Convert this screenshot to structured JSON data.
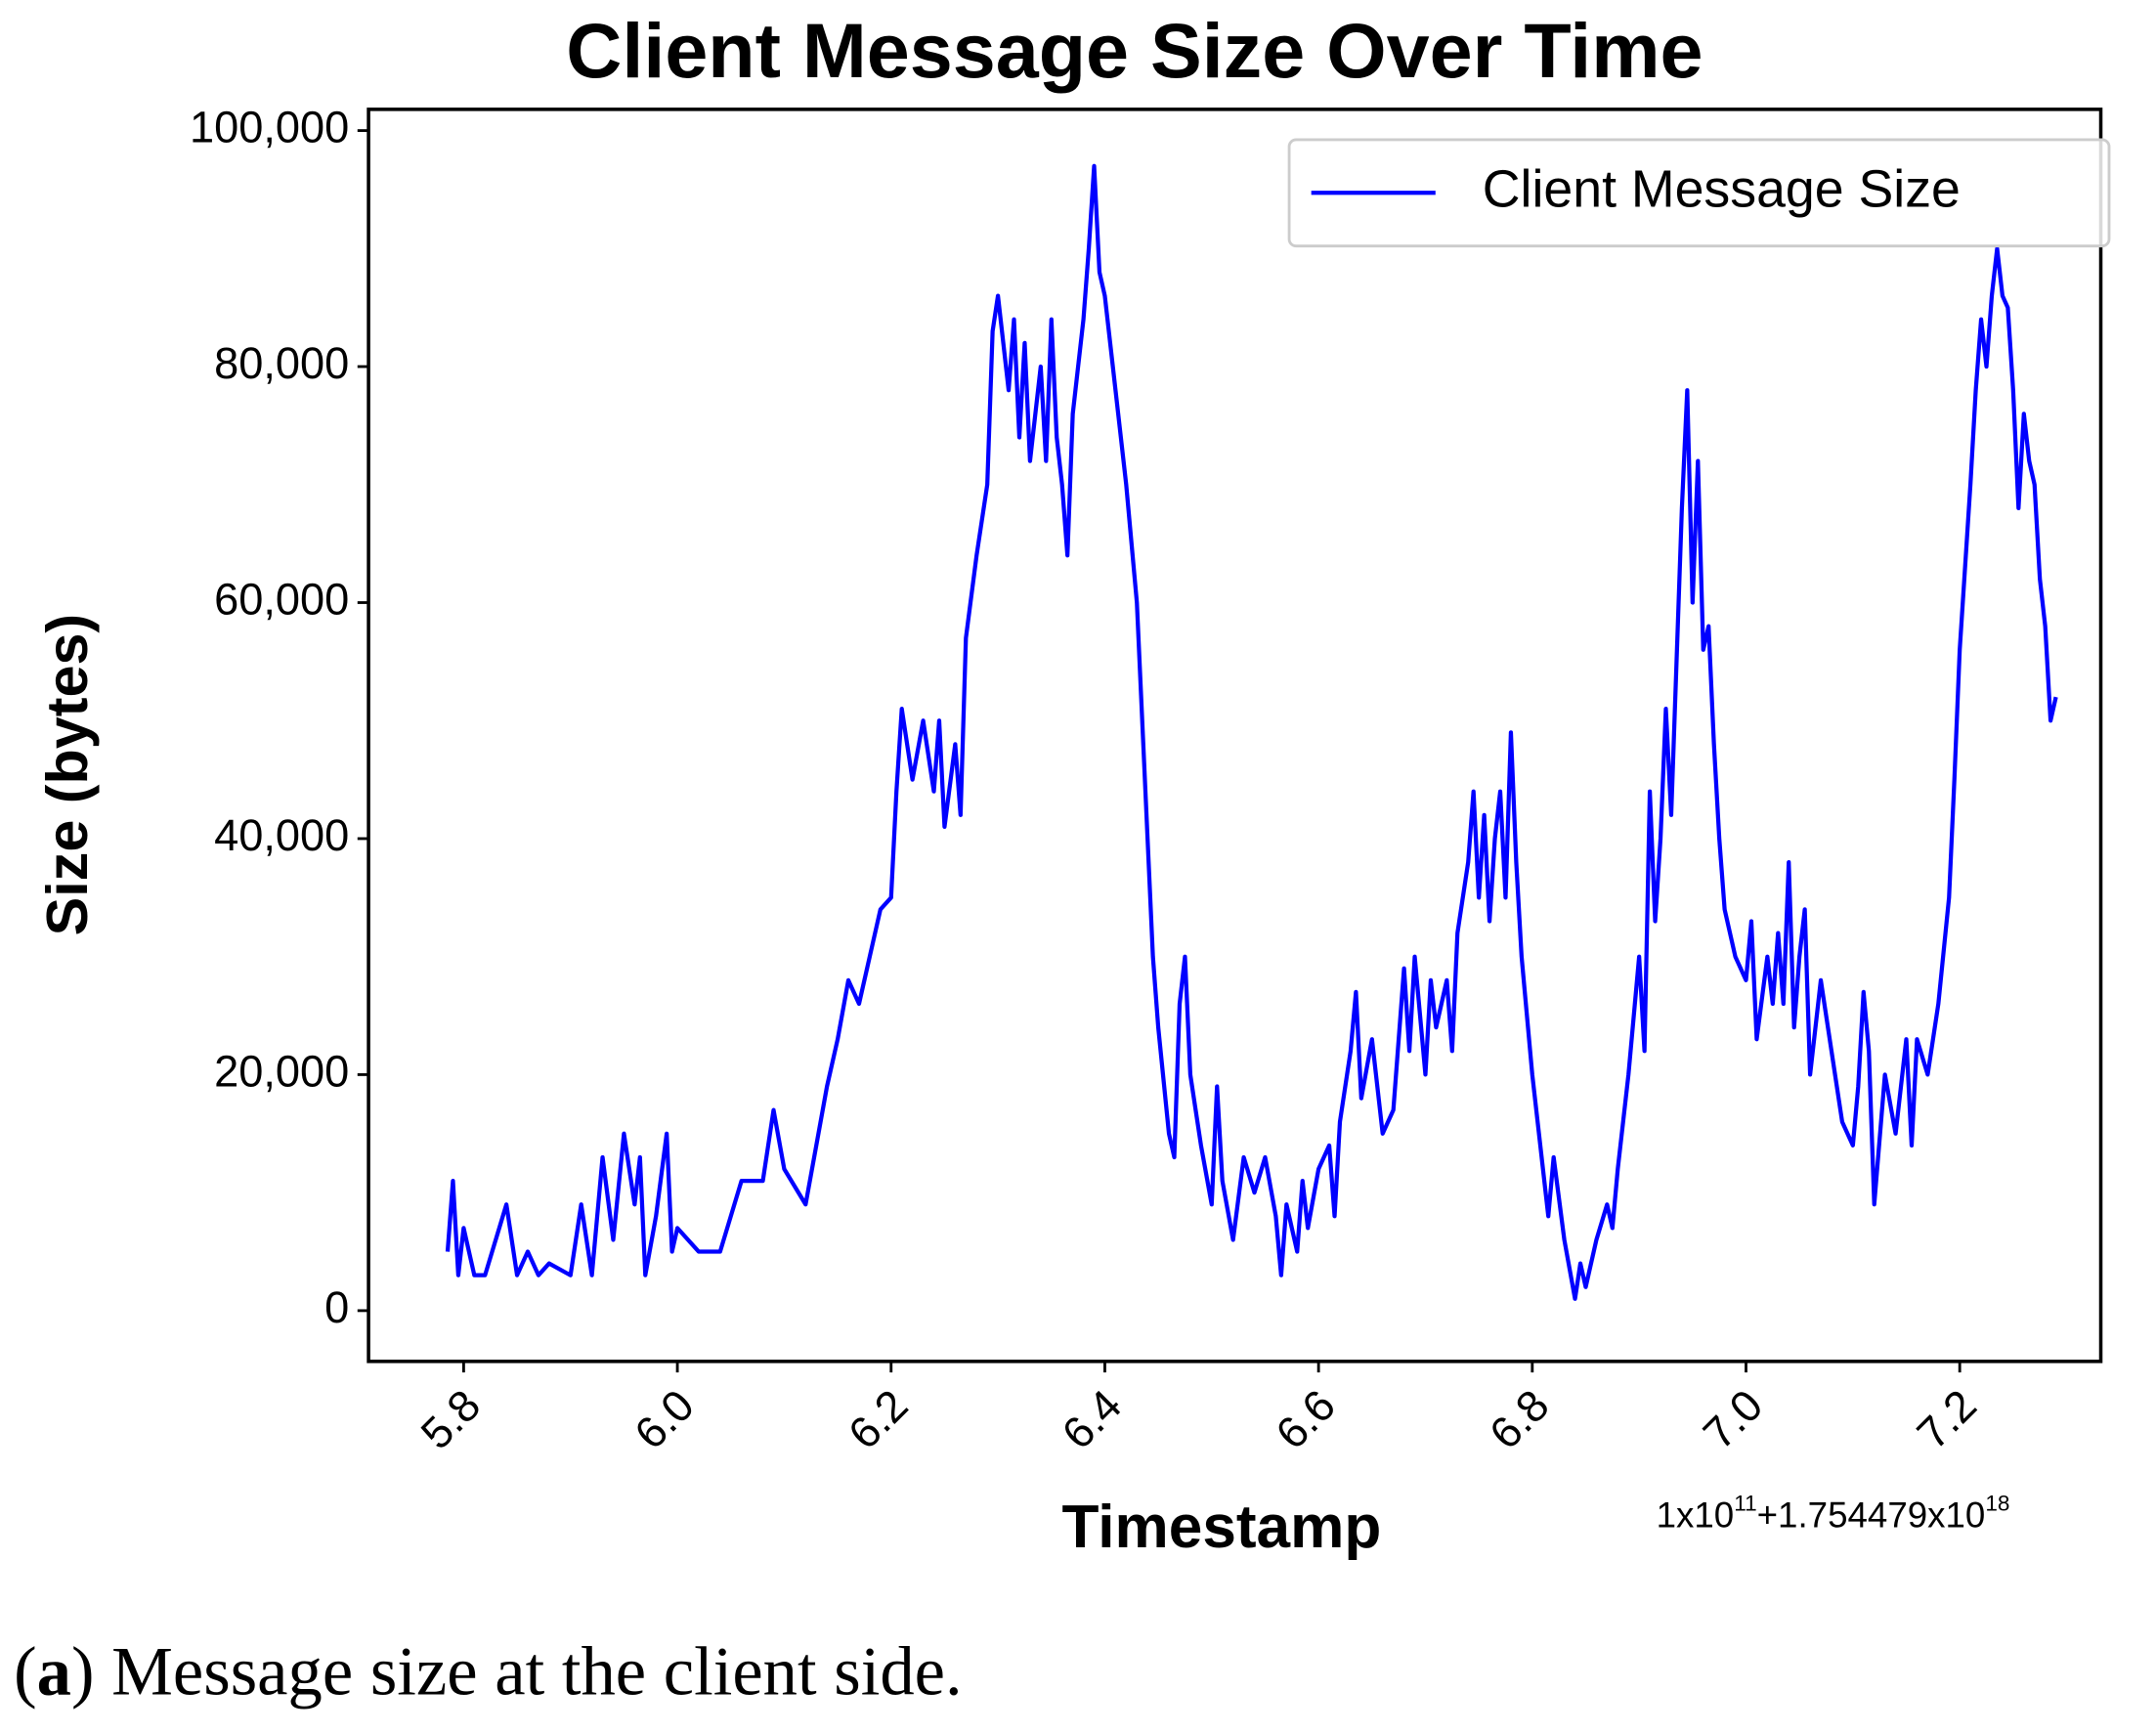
{
  "chart_data": {
    "type": "line",
    "title": "Client Message Size Over Time",
    "x_label": "Timestamp",
    "y_label": "Size (bytes)",
    "x_offset": [
      "1x10",
      "11",
      "+1.754479x10",
      "18"
    ],
    "caption": [
      "(",
      "a",
      ") Message size at the client side."
    ],
    "legend": "upper right",
    "xlim": [
      5.711,
      7.332
    ],
    "ylim": [
      -4300,
      101800
    ],
    "xticks": [
      5.8,
      {
        "value": 6,
        "label": "6.0"
      },
      6.2,
      6.4,
      6.6,
      6.8,
      {
        "value": 7,
        "label": "7.0"
      },
      7.2
    ],
    "yticks": [
      0,
      {
        "value": 20000,
        "label": "20,000"
      },
      {
        "value": 40000,
        "label": "40,000"
      },
      {
        "value": 60000,
        "label": "60,000"
      },
      {
        "value": 80000,
        "label": "80,000"
      },
      {
        "value": 100000,
        "label": "100,000"
      }
    ],
    "x": [
      5.785,
      5.79,
      5.795,
      5.8,
      5.81,
      5.82,
      5.83,
      5.84,
      5.85,
      5.86,
      5.87,
      5.88,
      5.9,
      5.91,
      5.92,
      5.93,
      5.94,
      5.95,
      5.96,
      5.965,
      5.97,
      5.98,
      5.99,
      5.995,
      6.0,
      6.02,
      6.04,
      6.05,
      6.06,
      6.08,
      6.09,
      6.1,
      6.12,
      6.13,
      6.14,
      6.15,
      6.16,
      6.17,
      6.18,
      6.19,
      6.2,
      6.205,
      6.21,
      6.22,
      6.23,
      6.24,
      6.245,
      6.25,
      6.26,
      6.265,
      6.27,
      6.28,
      6.29,
      6.295,
      6.3,
      6.31,
      6.315,
      6.32,
      6.325,
      6.33,
      6.34,
      6.345,
      6.35,
      6.355,
      6.36,
      6.365,
      6.37,
      6.38,
      6.385,
      6.39,
      6.395,
      6.4,
      6.41,
      6.42,
      6.43,
      6.44,
      6.445,
      6.45,
      6.46,
      6.465,
      6.47,
      6.475,
      6.48,
      6.49,
      6.5,
      6.505,
      6.51,
      6.52,
      6.53,
      6.54,
      6.55,
      6.56,
      6.565,
      6.57,
      6.58,
      6.585,
      6.59,
      6.6,
      6.61,
      6.615,
      6.62,
      6.63,
      6.635,
      6.64,
      6.65,
      6.66,
      6.67,
      6.68,
      6.685,
      6.69,
      6.7,
      6.705,
      6.71,
      6.72,
      6.725,
      6.73,
      6.74,
      6.745,
      6.75,
      6.755,
      6.76,
      6.765,
      6.77,
      6.775,
      6.78,
      6.785,
      6.79,
      6.8,
      6.81,
      6.815,
      6.82,
      6.83,
      6.84,
      6.845,
      6.85,
      6.86,
      6.87,
      6.875,
      6.88,
      6.89,
      6.9,
      6.905,
      6.91,
      6.915,
      6.92,
      6.925,
      6.93,
      6.935,
      6.94,
      6.945,
      6.95,
      6.955,
      6.96,
      6.965,
      6.97,
      6.975,
      6.98,
      6.99,
      7.0,
      7.005,
      7.01,
      7.02,
      7.025,
      7.03,
      7.035,
      7.04,
      7.045,
      7.05,
      7.055,
      7.06,
      7.07,
      7.08,
      7.09,
      7.1,
      7.105,
      7.11,
      7.115,
      7.12,
      7.13,
      7.14,
      7.15,
      7.155,
      7.16,
      7.17,
      7.18,
      7.19,
      7.195,
      7.2,
      7.21,
      7.215,
      7.22,
      7.225,
      7.23,
      7.235,
      7.24,
      7.245,
      7.25,
      7.255,
      7.26,
      7.265,
      7.27,
      7.275,
      7.28,
      7.285,
      7.29
    ],
    "series": [
      {
        "name": "Client Message Size",
        "color": "#0000ff",
        "values": [
          5000,
          11000,
          3000,
          7000,
          3000,
          3000,
          6000,
          9000,
          3000,
          5000,
          3000,
          4000,
          3000,
          9000,
          3000,
          13000,
          6000,
          15000,
          9000,
          13000,
          3000,
          8000,
          15000,
          5000,
          7000,
          5000,
          5000,
          8000,
          11000,
          11000,
          17000,
          12000,
          9000,
          14000,
          19000,
          23000,
          28000,
          26000,
          30000,
          34000,
          35000,
          44000,
          51000,
          45000,
          50000,
          44000,
          50000,
          41000,
          48000,
          42000,
          57000,
          64000,
          70000,
          83000,
          86000,
          78000,
          84000,
          74000,
          82000,
          72000,
          80000,
          72000,
          84000,
          74000,
          70000,
          64000,
          76000,
          84000,
          90000,
          97000,
          88000,
          86000,
          78000,
          70000,
          60000,
          40000,
          30000,
          24000,
          15000,
          13000,
          26000,
          30000,
          20000,
          14000,
          9000,
          19000,
          11000,
          6000,
          13000,
          10000,
          13000,
          8000,
          3000,
          9000,
          5000,
          11000,
          7000,
          12000,
          14000,
          8000,
          16000,
          22000,
          27000,
          18000,
          23000,
          15000,
          17000,
          29000,
          22000,
          30000,
          20000,
          28000,
          24000,
          28000,
          22000,
          32000,
          38000,
          44000,
          35000,
          42000,
          33000,
          40000,
          44000,
          35000,
          49000,
          38000,
          30000,
          20000,
          12000,
          8000,
          13000,
          6000,
          1000,
          4000,
          2000,
          6000,
          9000,
          7000,
          12000,
          20000,
          30000,
          22000,
          44000,
          33000,
          40000,
          51000,
          42000,
          55000,
          68000,
          78000,
          60000,
          72000,
          56000,
          58000,
          48000,
          40000,
          34000,
          30000,
          28000,
          33000,
          23000,
          30000,
          26000,
          32000,
          26000,
          38000,
          24000,
          30000,
          34000,
          20000,
          28000,
          22000,
          16000,
          14000,
          19000,
          27000,
          22000,
          9000,
          20000,
          15000,
          23000,
          14000,
          23000,
          20000,
          26000,
          35000,
          45000,
          56000,
          70000,
          78000,
          84000,
          80000,
          86000,
          90000,
          86000,
          85000,
          78000,
          68000,
          76000,
          72000,
          70000,
          62000,
          58000,
          50000,
          52000
        ]
      }
    ]
  }
}
